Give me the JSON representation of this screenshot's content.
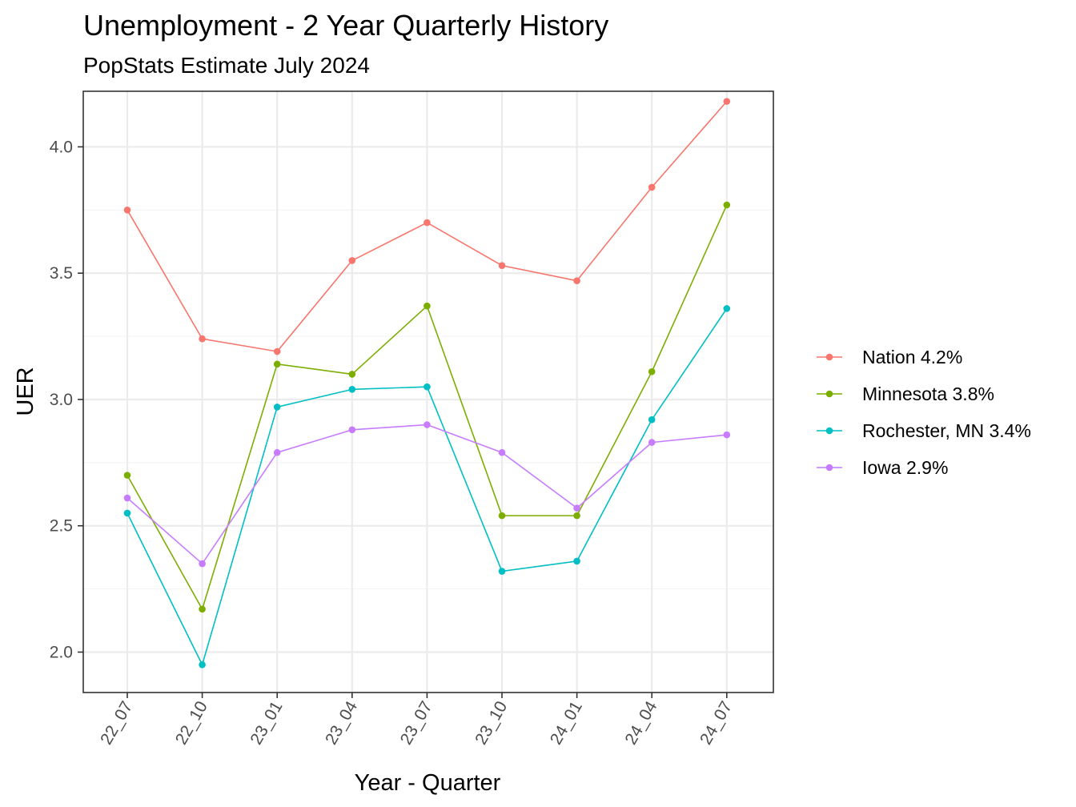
{
  "chart_data": {
    "type": "line",
    "title": "Unemployment - 2 Year Quarterly History",
    "subtitle": "PopStats Estimate July 2024",
    "xlabel": "Year - Quarter",
    "ylabel": "UER",
    "categories": [
      "22_07",
      "22_10",
      "23_01",
      "23_04",
      "23_07",
      "23_10",
      "24_01",
      "24_04",
      "24_07"
    ],
    "ylim": [
      1.84,
      4.22
    ],
    "yticks": [
      2.0,
      2.5,
      3.0,
      3.5,
      4.0
    ],
    "ytick_labels": [
      "2.0",
      "2.5",
      "3.0",
      "3.5",
      "4.0"
    ],
    "grid": true,
    "legend_position": "right",
    "series": [
      {
        "name": "Nation 4.2%",
        "color": "#F8766D",
        "values": [
          3.75,
          3.24,
          3.19,
          3.55,
          3.7,
          3.53,
          3.47,
          3.84,
          4.18
        ]
      },
      {
        "name": "Minnesota 3.8%",
        "color": "#7CAE00",
        "values": [
          2.7,
          2.17,
          3.14,
          3.1,
          3.37,
          2.54,
          2.54,
          3.11,
          3.77
        ]
      },
      {
        "name": "Rochester, MN 3.4%",
        "color": "#00BFC4",
        "values": [
          2.55,
          1.95,
          2.97,
          3.04,
          3.05,
          2.32,
          2.36,
          2.92,
          3.36
        ]
      },
      {
        "name": "Iowa 2.9%",
        "color": "#C77CFF",
        "values": [
          2.61,
          2.35,
          2.79,
          2.88,
          2.9,
          2.79,
          2.57,
          2.83,
          2.86
        ]
      }
    ]
  }
}
